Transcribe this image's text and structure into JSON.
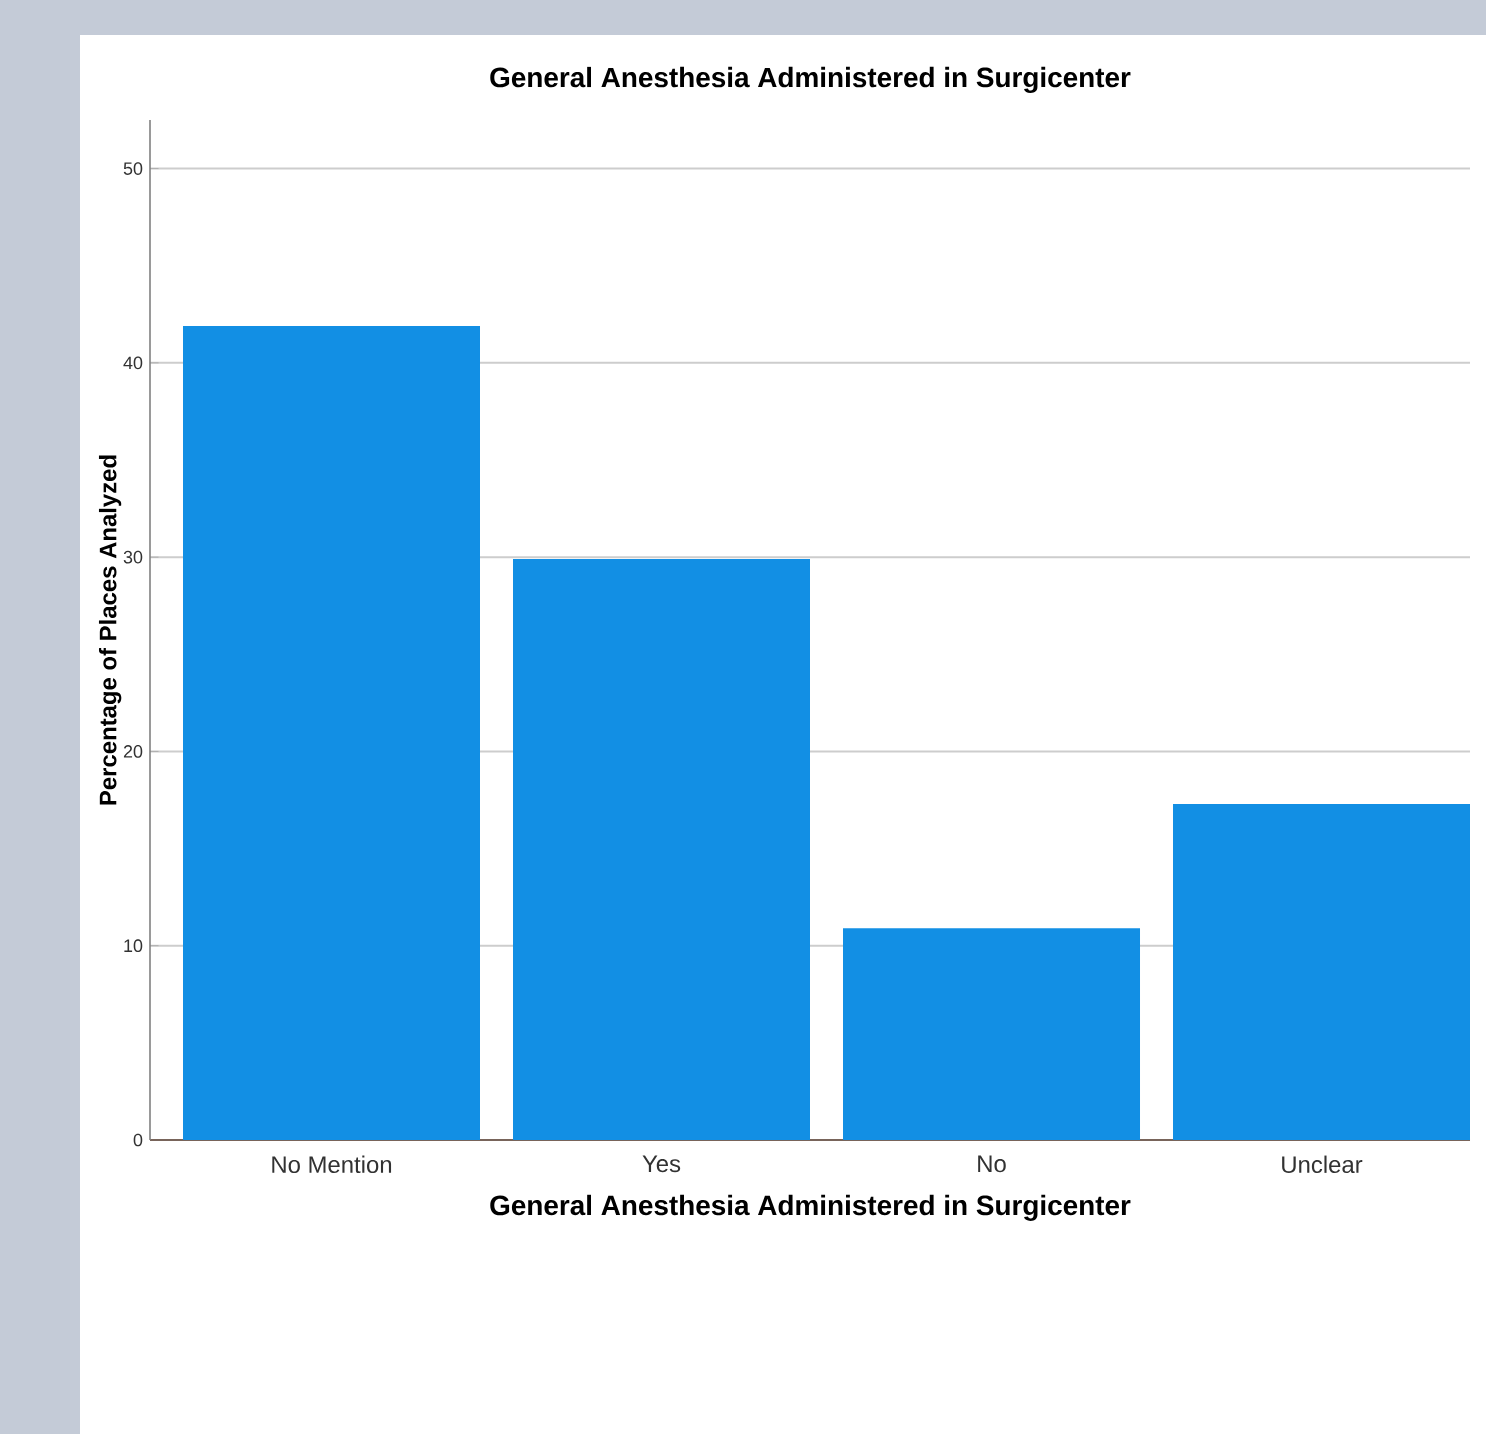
{
  "chart_data": {
    "type": "bar",
    "title": "General Anesthesia Administered in Surgicenter",
    "xlabel": "General Anesthesia Administered in Surgicenter",
    "ylabel": "Percentage of Places Analyzed",
    "categories": [
      "No Mention",
      "Yes",
      "No",
      "Unclear"
    ],
    "values": [
      41.9,
      29.9,
      10.9,
      17.3
    ],
    "color": "#128fe4",
    "ylim": [
      0,
      52.5
    ],
    "yticks": [
      0,
      10,
      20,
      30,
      40,
      50
    ],
    "grid": "y"
  }
}
